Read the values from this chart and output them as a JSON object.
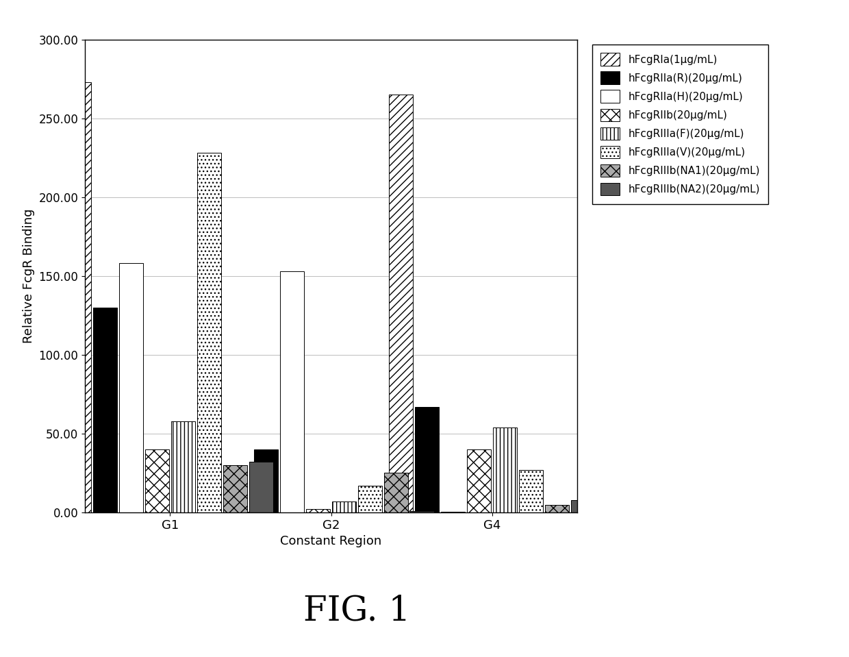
{
  "groups": [
    "G1",
    "G2",
    "G4"
  ],
  "series": [
    {
      "label": "hFcgRIa(1μg/mL)",
      "values": [
        273.0,
        0.5,
        265.0
      ],
      "hatch": "///",
      "facecolor": "white",
      "edgecolor": "black"
    },
    {
      "label": "hFcgRIIa(R)(20μg/mL)",
      "values": [
        130.0,
        40.0,
        67.0
      ],
      "hatch": "",
      "facecolor": "black",
      "edgecolor": "black"
    },
    {
      "label": "hFcgRIIa(H)(20μg/mL)",
      "values": [
        158.0,
        153.0,
        0.5
      ],
      "hatch": "",
      "facecolor": "white",
      "edgecolor": "black"
    },
    {
      "label": "hFcgRIIb(20μg/mL)",
      "values": [
        40.0,
        2.0,
        40.0
      ],
      "hatch": "xx",
      "facecolor": "white",
      "edgecolor": "black"
    },
    {
      "label": "hFcgRIIIa(F)(20μg/mL)",
      "values": [
        58.0,
        7.0,
        54.0
      ],
      "hatch": "|||",
      "facecolor": "white",
      "edgecolor": "black"
    },
    {
      "label": "hFcgRIIIa(V)(20μg/mL)",
      "values": [
        228.0,
        17.0,
        27.0
      ],
      "hatch": "...",
      "facecolor": "white",
      "edgecolor": "black"
    },
    {
      "label": "hFcgRIIIb(NA1)(20μg/mL)",
      "values": [
        30.0,
        25.0,
        5.0
      ],
      "hatch": "xx",
      "facecolor": "#aaaaaa",
      "edgecolor": "black"
    },
    {
      "label": "hFcgRIIIb(NA2)(20μg/mL)",
      "values": [
        32.0,
        1.0,
        8.0
      ],
      "hatch": "",
      "facecolor": "#555555",
      "edgecolor": "black"
    }
  ],
  "ylabel": "Relative FcgR Binding",
  "xlabel": "Constant Region",
  "ylim": [
    0,
    300
  ],
  "yticks": [
    0.0,
    50.0,
    100.0,
    150.0,
    200.0,
    250.0,
    300.0
  ],
  "figure_label": "FIG. 1",
  "background_color": "white",
  "bar_width": 0.055,
  "group_centers": [
    0.28,
    0.62,
    0.96
  ],
  "xlim": [
    0.1,
    1.14
  ]
}
